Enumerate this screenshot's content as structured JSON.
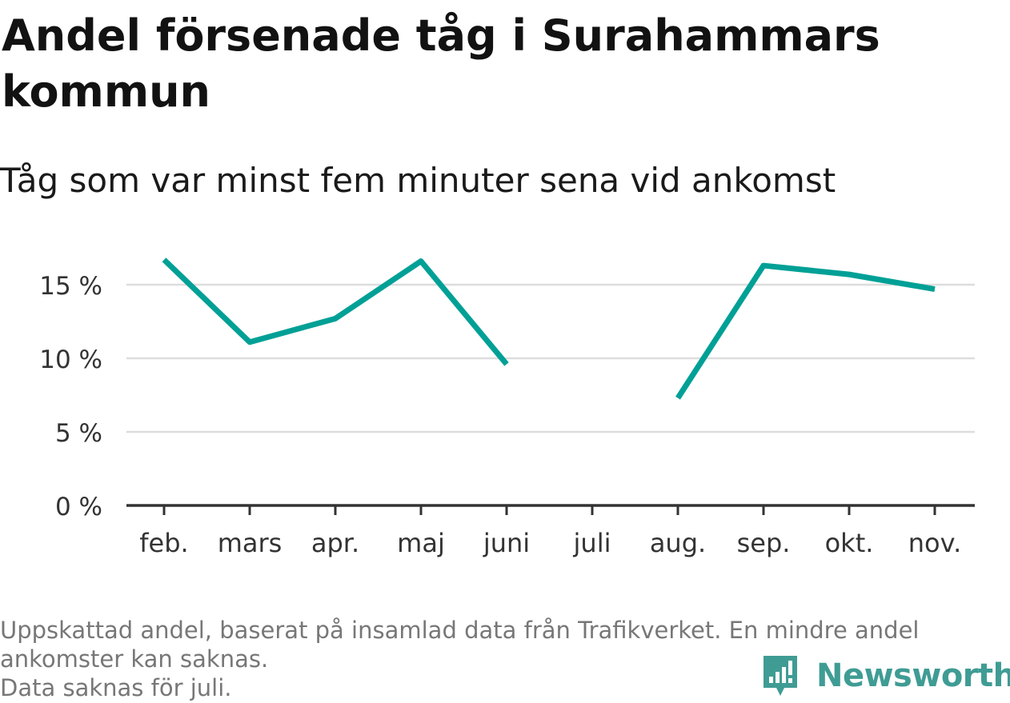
{
  "title": "Andel försenade tåg i Surahammars kommun",
  "subtitle": "Tåg som var minst fem minuter sena vid ankomst",
  "notes": [
    "Uppskattad andel, baserat på insamlad data från Trafikverket. En mindre andel",
    "ankomster kan saknas.",
    "Data saknas för juli."
  ],
  "brand": {
    "name": "Newsworthy",
    "logo_icon": "newsworthy-logo-icon",
    "color": "#3f9c94"
  },
  "chart_data": {
    "type": "line",
    "categories": [
      "feb.",
      "mars",
      "apr.",
      "maj",
      "juni",
      "juli",
      "aug.",
      "sep.",
      "okt.",
      "nov."
    ],
    "series": [
      {
        "values": [
          16.7,
          11.1,
          12.7,
          16.6,
          9.6,
          null,
          7.3,
          16.3,
          15.7,
          14.7
        ],
        "color": "#00a096"
      }
    ],
    "ylim": [
      0,
      18
    ],
    "yticks": [
      0,
      5,
      10,
      15
    ],
    "ytick_labels": [
      "0 %",
      "5 %",
      "10 %",
      "15 %"
    ],
    "grid": true,
    "gridColor": "#dddddd",
    "axisColor": "#333333",
    "xlabel": "",
    "ylabel": ""
  }
}
